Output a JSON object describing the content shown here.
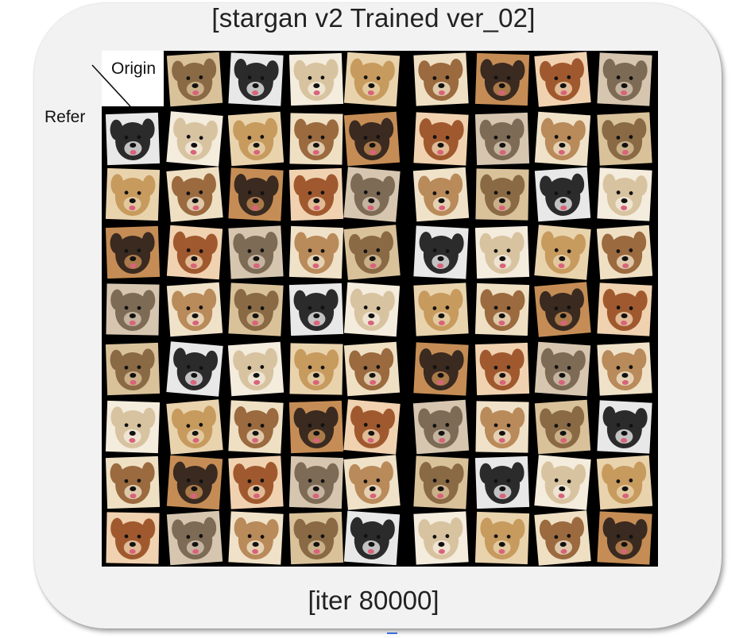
{
  "title": "[stargan v2 Trained ver_02]",
  "footer": "[iter 80000]",
  "labels": {
    "origin": "Origin",
    "refer": "Refer"
  },
  "colors": {
    "card_bg": "#f2f2f2",
    "grid_bg": "#000000",
    "text": "#222222"
  },
  "grid": {
    "columns": 9,
    "rows": 9,
    "content": "dog face photographs"
  }
}
